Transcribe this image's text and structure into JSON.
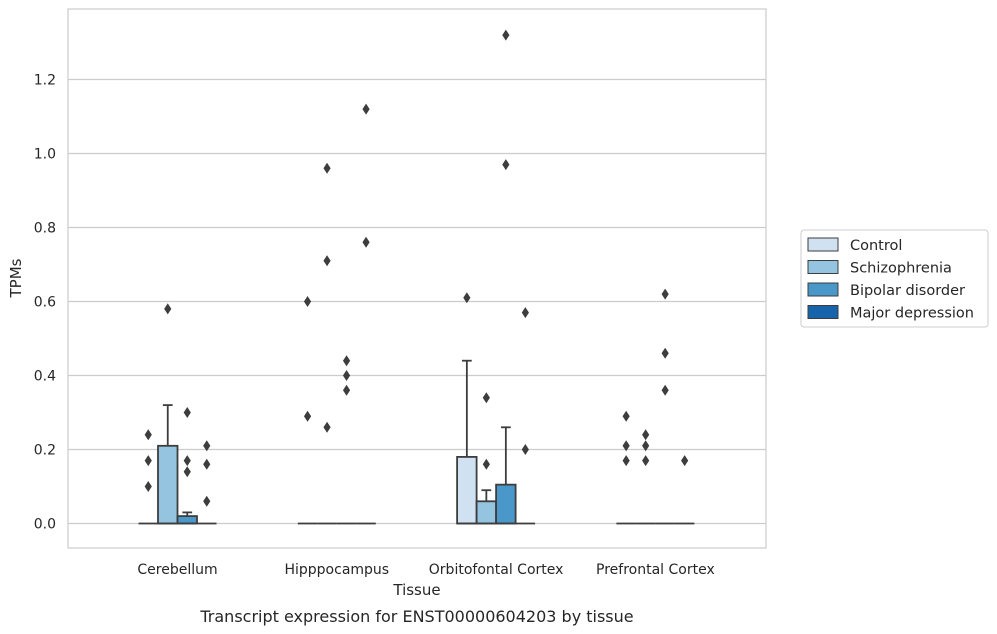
{
  "chart_data": {
    "type": "box",
    "title": "",
    "caption": "Transcript expression for ENST00000604203 by tissue",
    "xlabel": "Tissue",
    "ylabel": "TPMs",
    "ylim": [
      -0.065,
      1.38
    ],
    "yticks": [
      0.0,
      0.2,
      0.4,
      0.6,
      0.8,
      1.0,
      1.2
    ],
    "ytick_labels": [
      "0.0",
      "0.2",
      "0.4",
      "0.6",
      "0.8",
      "1.0",
      "1.2"
    ],
    "grid": "horizontal",
    "legend_position": "right",
    "categories": [
      "Cerebellum",
      "Hipppocampus",
      "Orbitofontal Cortex",
      "Prefrontal Cortex"
    ],
    "series": [
      {
        "name": "Control",
        "color": "#d0e1f2",
        "boxes": [
          {
            "q1": 0,
            "median": 0,
            "q3": 0,
            "whisker_low": 0,
            "whisker_high": 0,
            "outliers": [
              0.1,
              0.17,
              0.24
            ]
          },
          {
            "q1": 0,
            "median": 0,
            "q3": 0,
            "whisker_low": 0,
            "whisker_high": 0,
            "outliers": [
              0.29,
              0.6
            ]
          },
          {
            "q1": 0,
            "median": 0,
            "q3": 0.18,
            "whisker_low": 0,
            "whisker_high": 0.44,
            "outliers": [
              0.61
            ]
          },
          {
            "q1": 0,
            "median": 0,
            "q3": 0,
            "whisker_low": 0,
            "whisker_high": 0,
            "outliers": [
              0.17,
              0.21,
              0.29
            ]
          }
        ]
      },
      {
        "name": "Schizophrenia",
        "color": "#94c4df",
        "boxes": [
          {
            "q1": 0,
            "median": 0,
            "q3": 0.21,
            "whisker_low": 0,
            "whisker_high": 0.32,
            "outliers": [
              0.58
            ]
          },
          {
            "q1": 0,
            "median": 0,
            "q3": 0,
            "whisker_low": 0,
            "whisker_high": 0,
            "outliers": [
              0.26,
              0.71,
              0.96
            ]
          },
          {
            "q1": 0,
            "median": 0,
            "q3": 0.06,
            "whisker_low": 0,
            "whisker_high": 0.09,
            "outliers": [
              0.16,
              0.34
            ]
          },
          {
            "q1": 0,
            "median": 0,
            "q3": 0,
            "whisker_low": 0,
            "whisker_high": 0,
            "outliers": [
              0.17,
              0.21,
              0.24
            ]
          }
        ]
      },
      {
        "name": "Bipolar disorder",
        "color": "#4a98c9",
        "boxes": [
          {
            "q1": 0,
            "median": 0,
            "q3": 0.02,
            "whisker_low": 0,
            "whisker_high": 0.03,
            "outliers": [
              0.14,
              0.17,
              0.3
            ]
          },
          {
            "q1": 0,
            "median": 0,
            "q3": 0,
            "whisker_low": 0,
            "whisker_high": 0,
            "outliers": [
              0.36,
              0.4,
              0.44
            ]
          },
          {
            "q1": 0,
            "median": 0,
            "q3": 0.105,
            "whisker_low": 0,
            "whisker_high": 0.26,
            "outliers": [
              0.97,
              1.32
            ]
          },
          {
            "q1": 0,
            "median": 0,
            "q3": 0,
            "whisker_low": 0,
            "whisker_high": 0,
            "outliers": [
              0.36,
              0.46,
              0.62
            ]
          }
        ]
      },
      {
        "name": "Major depression",
        "color": "#1764ab",
        "boxes": [
          {
            "q1": 0,
            "median": 0,
            "q3": 0,
            "whisker_low": 0,
            "whisker_high": 0,
            "outliers": [
              0.06,
              0.16,
              0.21
            ]
          },
          {
            "q1": 0,
            "median": 0,
            "q3": 0,
            "whisker_low": 0,
            "whisker_high": 0,
            "outliers": [
              0.76,
              1.12
            ]
          },
          {
            "q1": 0,
            "median": 0,
            "q3": 0,
            "whisker_low": 0,
            "whisker_high": 0,
            "outliers": [
              0.2,
              0.57
            ]
          },
          {
            "q1": 0,
            "median": 0,
            "q3": 0,
            "whisker_low": 0,
            "whisker_high": 0,
            "outliers": [
              0.17
            ]
          }
        ]
      }
    ]
  }
}
